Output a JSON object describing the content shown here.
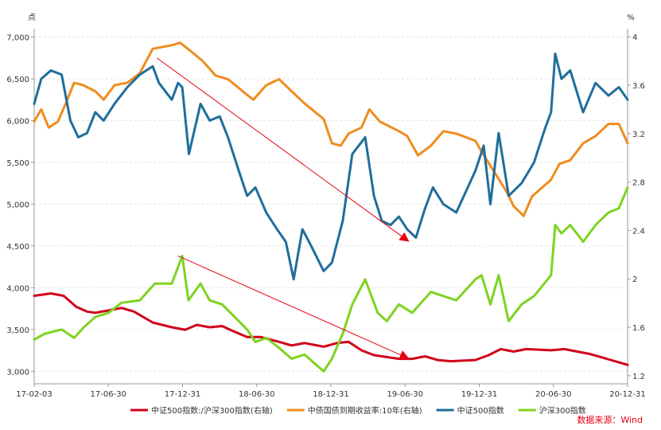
{
  "chart_data": {
    "type": "line",
    "left_unit": "点",
    "right_unit": "%",
    "x_ticks": [
      "17-02-03",
      "17-06-30",
      "17-12-31",
      "18-06-30",
      "18-12-31",
      "19-06-30",
      "19-12-31",
      "20-06-30",
      "20-12-31"
    ],
    "y_left_ticks": [
      "7,000",
      "6,500",
      "6,000",
      "5,500",
      "5,000",
      "4,500",
      "4,000",
      "3,500",
      "3,000"
    ],
    "y_right_ticks": [
      "4",
      "3.6",
      "3.2",
      "2.8",
      "2.4",
      "2",
      "1.6",
      "1.2"
    ],
    "ylim_left": [
      2850,
      7100
    ],
    "ylim_right": [
      1.1333,
      4.0667
    ],
    "xlim": [
      "2017-02-03",
      "2020-12-31"
    ],
    "series": [
      {
        "name": "中证500指数:/沪深300指数(右轴)",
        "axis": "right",
        "color": "#d0021b",
        "points": [
          [
            "2017-02-03",
            1.86
          ],
          [
            "2017-03-15",
            1.88
          ],
          [
            "2017-04-15",
            1.86
          ],
          [
            "2017-05-15",
            1.77
          ],
          [
            "2017-06-10",
            1.73
          ],
          [
            "2017-06-30",
            1.72
          ],
          [
            "2017-08-01",
            1.74
          ],
          [
            "2017-09-01",
            1.76
          ],
          [
            "2017-10-01",
            1.73
          ],
          [
            "2017-11-15",
            1.64
          ],
          [
            "2017-12-31",
            1.6
          ],
          [
            "2018-02-01",
            1.58
          ],
          [
            "2018-03-01",
            1.62
          ],
          [
            "2018-04-01",
            1.6
          ],
          [
            "2018-05-01",
            1.61
          ],
          [
            "2018-05-20",
            1.58
          ],
          [
            "2018-06-30",
            1.52
          ],
          [
            "2018-08-01",
            1.52
          ],
          [
            "2018-09-15",
            1.48
          ],
          [
            "2018-10-15",
            1.45
          ],
          [
            "2018-11-15",
            1.47
          ],
          [
            "2018-12-31",
            1.44
          ],
          [
            "2019-02-01",
            1.47
          ],
          [
            "2019-03-01",
            1.48
          ],
          [
            "2019-04-01",
            1.41
          ],
          [
            "2019-05-01",
            1.37
          ],
          [
            "2019-06-30",
            1.34
          ],
          [
            "2019-08-01",
            1.34
          ],
          [
            "2019-09-01",
            1.36
          ],
          [
            "2019-10-01",
            1.33
          ],
          [
            "2019-11-01",
            1.32
          ],
          [
            "2019-12-31",
            1.33
          ],
          [
            "2020-02-01",
            1.37
          ],
          [
            "2020-03-01",
            1.42
          ],
          [
            "2020-04-01",
            1.4
          ],
          [
            "2020-05-01",
            1.42
          ],
          [
            "2020-06-30",
            1.41
          ],
          [
            "2020-08-01",
            1.42
          ],
          [
            "2020-09-01",
            1.4
          ],
          [
            "2020-10-01",
            1.38
          ],
          [
            "2020-11-01",
            1.35
          ],
          [
            "2020-12-31",
            1.29
          ]
        ]
      },
      {
        "name": "中债国债到期收益率:10年(右轴)",
        "axis": "right",
        "color": "#f08c1e",
        "points": [
          [
            "2017-02-03",
            3.3
          ],
          [
            "2017-02-20",
            3.4
          ],
          [
            "2017-03-10",
            3.25
          ],
          [
            "2017-04-01",
            3.3
          ],
          [
            "2017-04-20",
            3.45
          ],
          [
            "2017-05-10",
            3.62
          ],
          [
            "2017-06-01",
            3.6
          ],
          [
            "2017-06-30",
            3.55
          ],
          [
            "2017-07-20",
            3.48
          ],
          [
            "2017-08-15",
            3.6
          ],
          [
            "2017-09-15",
            3.62
          ],
          [
            "2017-10-15",
            3.7
          ],
          [
            "2017-11-15",
            3.9
          ],
          [
            "2017-12-31",
            3.93
          ],
          [
            "2018-01-20",
            3.95
          ],
          [
            "2018-02-15",
            3.88
          ],
          [
            "2018-03-15",
            3.8
          ],
          [
            "2018-04-15",
            3.68
          ],
          [
            "2018-05-15",
            3.65
          ],
          [
            "2018-06-30",
            3.52
          ],
          [
            "2018-07-15",
            3.48
          ],
          [
            "2018-08-15",
            3.6
          ],
          [
            "2018-09-15",
            3.65
          ],
          [
            "2018-10-15",
            3.55
          ],
          [
            "2018-11-15",
            3.45
          ],
          [
            "2018-12-31",
            3.32
          ],
          [
            "2019-01-20",
            3.12
          ],
          [
            "2019-02-10",
            3.1
          ],
          [
            "2019-03-01",
            3.2
          ],
          [
            "2019-04-01",
            3.25
          ],
          [
            "2019-04-20",
            3.4
          ],
          [
            "2019-05-15",
            3.3
          ],
          [
            "2019-06-30",
            3.22
          ],
          [
            "2019-07-20",
            3.18
          ],
          [
            "2019-08-15",
            3.02
          ],
          [
            "2019-09-15",
            3.1
          ],
          [
            "2019-10-15",
            3.22
          ],
          [
            "2019-11-15",
            3.2
          ],
          [
            "2019-12-31",
            3.14
          ],
          [
            "2020-01-15",
            3.05
          ],
          [
            "2020-02-15",
            2.88
          ],
          [
            "2020-03-15",
            2.72
          ],
          [
            "2020-04-01",
            2.6
          ],
          [
            "2020-04-25",
            2.52
          ],
          [
            "2020-05-15",
            2.68
          ],
          [
            "2020-06-30",
            2.82
          ],
          [
            "2020-07-20",
            2.95
          ],
          [
            "2020-08-15",
            2.98
          ],
          [
            "2020-09-15",
            3.12
          ],
          [
            "2020-10-15",
            3.18
          ],
          [
            "2020-11-15",
            3.28
          ],
          [
            "2020-12-10",
            3.28
          ],
          [
            "2020-12-31",
            3.12
          ]
        ]
      },
      {
        "name": "中证500指数",
        "axis": "left",
        "color": "#1f6e9c",
        "points": [
          [
            "2017-02-03",
            6200
          ],
          [
            "2017-02-20",
            6500
          ],
          [
            "2017-03-15",
            6600
          ],
          [
            "2017-04-10",
            6550
          ],
          [
            "2017-05-01",
            6000
          ],
          [
            "2017-05-20",
            5800
          ],
          [
            "2017-06-10",
            5850
          ],
          [
            "2017-06-30",
            6100
          ],
          [
            "2017-07-20",
            6000
          ],
          [
            "2017-08-15",
            6200
          ],
          [
            "2017-09-15",
            6400
          ],
          [
            "2017-10-15",
            6550
          ],
          [
            "2017-11-15",
            6650
          ],
          [
            "2017-11-30",
            6450
          ],
          [
            "2017-12-31",
            6250
          ],
          [
            "2018-01-15",
            6450
          ],
          [
            "2018-01-25",
            6400
          ],
          [
            "2018-02-10",
            5600
          ],
          [
            "2018-03-10",
            6200
          ],
          [
            "2018-04-01",
            6000
          ],
          [
            "2018-04-25",
            6050
          ],
          [
            "2018-05-15",
            5800
          ],
          [
            "2018-06-10",
            5400
          ],
          [
            "2018-06-30",
            5100
          ],
          [
            "2018-07-20",
            5200
          ],
          [
            "2018-08-15",
            4900
          ],
          [
            "2018-09-10",
            4700
          ],
          [
            "2018-10-01",
            4550
          ],
          [
            "2018-10-20",
            4100
          ],
          [
            "2018-11-10",
            4700
          ],
          [
            "2018-12-01",
            4500
          ],
          [
            "2018-12-31",
            4200
          ],
          [
            "2019-01-20",
            4300
          ],
          [
            "2019-02-15",
            4800
          ],
          [
            "2019-03-10",
            5600
          ],
          [
            "2019-04-10",
            5800
          ],
          [
            "2019-05-01",
            5100
          ],
          [
            "2019-05-20",
            4800
          ],
          [
            "2019-06-10",
            4750
          ],
          [
            "2019-06-30",
            4850
          ],
          [
            "2019-07-20",
            4700
          ],
          [
            "2019-08-10",
            4600
          ],
          [
            "2019-09-01",
            4950
          ],
          [
            "2019-09-20",
            5200
          ],
          [
            "2019-10-15",
            5000
          ],
          [
            "2019-11-15",
            4900
          ],
          [
            "2019-12-31",
            5400
          ],
          [
            "2020-01-20",
            5700
          ],
          [
            "2020-02-05",
            5000
          ],
          [
            "2020-02-25",
            5850
          ],
          [
            "2020-03-20",
            5100
          ],
          [
            "2020-04-20",
            5250
          ],
          [
            "2020-05-20",
            5500
          ],
          [
            "2020-06-15",
            5900
          ],
          [
            "2020-06-30",
            6100
          ],
          [
            "2020-07-10",
            6800
          ],
          [
            "2020-07-25",
            6500
          ],
          [
            "2020-08-15",
            6600
          ],
          [
            "2020-09-15",
            6100
          ],
          [
            "2020-10-15",
            6450
          ],
          [
            "2020-11-15",
            6300
          ],
          [
            "2020-12-10",
            6400
          ],
          [
            "2020-12-31",
            6250
          ]
        ]
      },
      {
        "name": "沪深300指数",
        "axis": "left",
        "color": "#7ed321",
        "points": [
          [
            "2017-02-03",
            3380
          ],
          [
            "2017-03-01",
            3450
          ],
          [
            "2017-04-10",
            3500
          ],
          [
            "2017-05-10",
            3400
          ],
          [
            "2017-06-01",
            3520
          ],
          [
            "2017-06-30",
            3650
          ],
          [
            "2017-08-01",
            3700
          ],
          [
            "2017-09-01",
            3820
          ],
          [
            "2017-10-15",
            3850
          ],
          [
            "2017-11-20",
            4050
          ],
          [
            "2017-12-31",
            4050
          ],
          [
            "2018-01-25",
            4380
          ],
          [
            "2018-02-09",
            3850
          ],
          [
            "2018-03-10",
            4050
          ],
          [
            "2018-04-01",
            3850
          ],
          [
            "2018-05-01",
            3800
          ],
          [
            "2018-06-30",
            3500
          ],
          [
            "2018-07-20",
            3350
          ],
          [
            "2018-08-15",
            3400
          ],
          [
            "2018-09-10",
            3300
          ],
          [
            "2018-10-15",
            3150
          ],
          [
            "2018-11-15",
            3200
          ],
          [
            "2018-12-31",
            3000
          ],
          [
            "2019-01-20",
            3150
          ],
          [
            "2019-02-15",
            3450
          ],
          [
            "2019-03-10",
            3800
          ],
          [
            "2019-04-10",
            4100
          ],
          [
            "2019-05-10",
            3700
          ],
          [
            "2019-06-01",
            3600
          ],
          [
            "2019-06-30",
            3800
          ],
          [
            "2019-08-01",
            3700
          ],
          [
            "2019-09-15",
            3950
          ],
          [
            "2019-10-15",
            3900
          ],
          [
            "2019-11-15",
            3850
          ],
          [
            "2019-12-31",
            4100
          ],
          [
            "2020-01-15",
            4150
          ],
          [
            "2020-02-05",
            3800
          ],
          [
            "2020-02-25",
            4150
          ],
          [
            "2020-03-20",
            3600
          ],
          [
            "2020-04-20",
            3800
          ],
          [
            "2020-05-20",
            3900
          ],
          [
            "2020-06-30",
            4150
          ],
          [
            "2020-07-10",
            4750
          ],
          [
            "2020-07-25",
            4650
          ],
          [
            "2020-08-15",
            4750
          ],
          [
            "2020-09-15",
            4550
          ],
          [
            "2020-10-15",
            4750
          ],
          [
            "2020-11-15",
            4900
          ],
          [
            "2020-12-10",
            4950
          ],
          [
            "2020-12-31",
            5200
          ]
        ]
      }
    ],
    "annotations": [
      {
        "type": "arrow",
        "color": "#e60012",
        "axis": "left",
        "from": [
          "2017-11-25",
          6750
        ],
        "to": [
          "2019-07-25",
          4550
        ]
      },
      {
        "type": "arrow",
        "color": "#e60012",
        "axis": "left",
        "from": [
          "2018-01-15",
          4380
        ],
        "to": [
          "2019-07-25",
          3150
        ]
      }
    ],
    "legend_position": "bottom",
    "grid": "horizontal dashed",
    "source_text": "数据来源：Wind"
  }
}
